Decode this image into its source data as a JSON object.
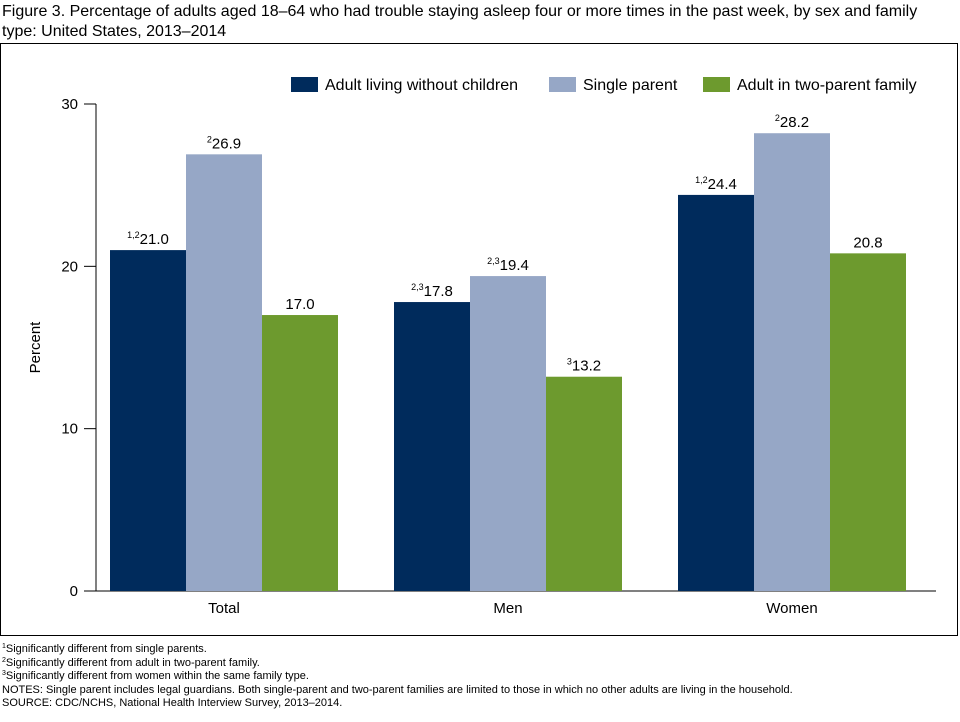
{
  "title": "Figure 3. Percentage of adults aged 18–64 who had trouble staying asleep four or more times in the past week, by sex and family type: United States, 2013–2014",
  "chart_data": {
    "type": "bar",
    "categories": [
      "Total",
      "Men",
      "Women"
    ],
    "series": [
      {
        "name": "Adult living without children",
        "color": "#002b5c",
        "values": [
          21.0,
          17.8,
          24.4
        ],
        "labels": [
          "21.0",
          "17.8",
          "24.4"
        ],
        "superscripts": [
          "1,2",
          "2,3",
          "1,2"
        ]
      },
      {
        "name": "Single parent",
        "color": "#96a7c6",
        "values": [
          26.9,
          19.4,
          28.2
        ],
        "labels": [
          "26.9",
          "19.4",
          "28.2"
        ],
        "superscripts": [
          "2",
          "2,3",
          "2"
        ]
      },
      {
        "name": "Adult in two-parent family",
        "color": "#6d9a2e",
        "values": [
          17.0,
          13.2,
          20.8
        ],
        "labels": [
          "17.0",
          "13.2",
          "20.8"
        ],
        "superscripts": [
          "",
          "3",
          ""
        ]
      }
    ],
    "ylabel": "Percent",
    "xlabel": "",
    "ylim": [
      0,
      30
    ],
    "yticks": [
      "0",
      "10",
      "20",
      "30"
    ],
    "grid": false,
    "legend": "top-right"
  },
  "footnotes": [
    {
      "mark": "1",
      "text": "Significantly different from single parents."
    },
    {
      "mark": "2",
      "text": "Significantly different from adult in two-parent family."
    },
    {
      "mark": "3",
      "text": "Significantly different from women within the same family type."
    },
    {
      "mark": "",
      "text": "NOTES: Single parent includes legal guardians. Both single-parent and two-parent families are limited to those in which no other adults are living in the household."
    },
    {
      "mark": "",
      "text": "SOURCE: CDC/NCHS, National Health Interview Survey, 2013–2014."
    }
  ]
}
